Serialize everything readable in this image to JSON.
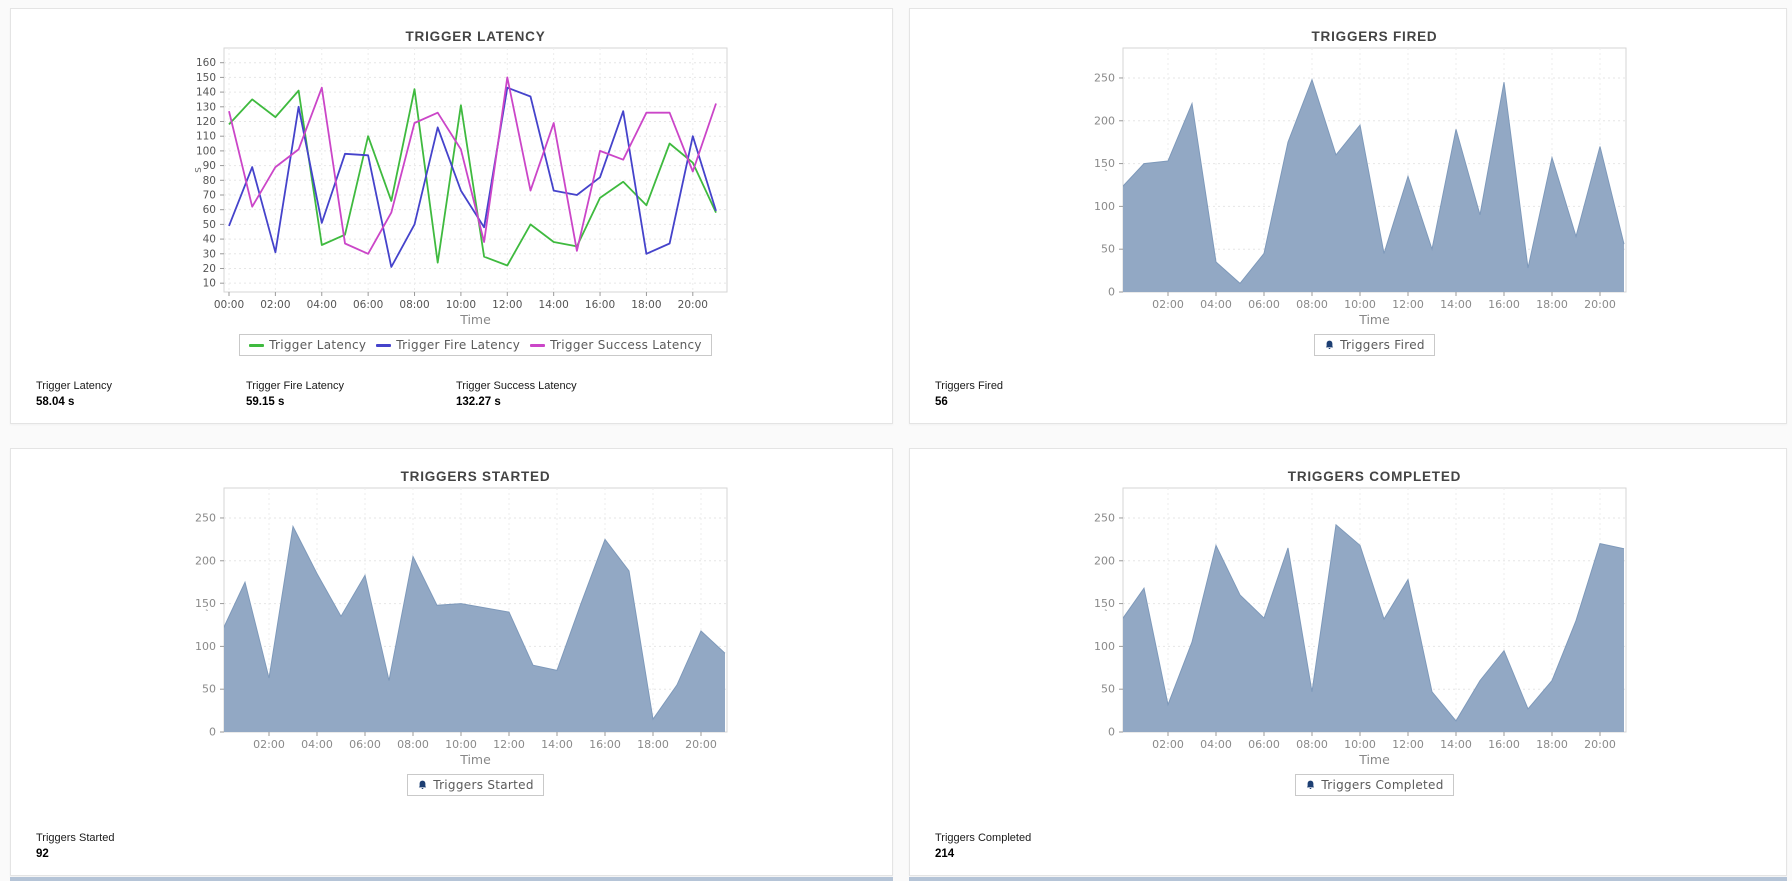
{
  "page": {
    "background": "#fafafa",
    "panel_border": "#e4e4e4",
    "next_row_strip_color": "#b5c4d7"
  },
  "chart_data": [
    {
      "type": "line",
      "title": "TRIGGER LATENCY",
      "xlabel": "Time",
      "ylabel": "s",
      "categories": [
        "00:00",
        "01:00",
        "02:00",
        "03:00",
        "04:00",
        "05:00",
        "06:00",
        "07:00",
        "08:00",
        "09:00",
        "10:00",
        "11:00",
        "12:00",
        "13:00",
        "14:00",
        "15:00",
        "16:00",
        "17:00",
        "18:00",
        "19:00",
        "20:00",
        "21:00"
      ],
      "xtick_labels": [
        "00:00",
        "02:00",
        "04:00",
        "06:00",
        "08:00",
        "10:00",
        "12:00",
        "14:00",
        "16:00",
        "18:00",
        "20:00"
      ],
      "ylim": [
        4,
        170
      ],
      "yticks": [
        10,
        20,
        30,
        40,
        50,
        60,
        70,
        80,
        90,
        100,
        110,
        120,
        130,
        140,
        150,
        160
      ],
      "grid": true,
      "legend_position": "bottom",
      "series": [
        {
          "name": "Trigger Latency",
          "color": "#3fba3f",
          "values": [
            118,
            135,
            123,
            141,
            36,
            43,
            110,
            66,
            142,
            24,
            131,
            28,
            22,
            50,
            38,
            35,
            68,
            79,
            63,
            105,
            92,
            58.04
          ]
        },
        {
          "name": "Trigger Fire Latency",
          "color": "#4543cb",
          "values": [
            49,
            89,
            31,
            130,
            51,
            98,
            97,
            21,
            50,
            116,
            73,
            48,
            143,
            137,
            73,
            70,
            82,
            127,
            30,
            37,
            110,
            59.15
          ]
        },
        {
          "name": "Trigger Success Latency",
          "color": "#cb46c8",
          "values": [
            127,
            62,
            89,
            101,
            143,
            37,
            30,
            58,
            119,
            126,
            101,
            38,
            150,
            73,
            119,
            32,
            100,
            94,
            126,
            126,
            86,
            132.27
          ]
        }
      ],
      "current": [
        {
          "label": "Trigger Latency",
          "value": "58.04 s"
        },
        {
          "label": "Trigger Fire Latency",
          "value": "59.15 s"
        },
        {
          "label": "Trigger Success Latency",
          "value": "132.27 s"
        }
      ]
    },
    {
      "type": "area",
      "title": "TRIGGERS FIRED",
      "xlabel": "Time",
      "ylabel": ",",
      "categories": [
        "00:00",
        "01:00",
        "02:00",
        "03:00",
        "04:00",
        "05:00",
        "06:00",
        "07:00",
        "08:00",
        "09:00",
        "10:00",
        "11:00",
        "12:00",
        "13:00",
        "14:00",
        "15:00",
        "16:00",
        "17:00",
        "18:00",
        "19:00",
        "20:00",
        "21:00"
      ],
      "xtick_labels": [
        "02:00",
        "04:00",
        "06:00",
        "08:00",
        "10:00",
        "12:00",
        "14:00",
        "16:00",
        "18:00",
        "20:00"
      ],
      "ylim": [
        0,
        285
      ],
      "yticks": [
        0,
        50,
        100,
        150,
        200,
        250
      ],
      "grid": true,
      "legend_position": "bottom",
      "legend_icon": "bell-icon",
      "area_fill": "#92a8c4",
      "area_stroke": "#7e99ba",
      "series": [
        {
          "name": "Triggers Fired",
          "color": "#92a8c4",
          "values": [
            120,
            150,
            153,
            220,
            35,
            10,
            45,
            175,
            248,
            160,
            195,
            45,
            135,
            50,
            190,
            90,
            245,
            28,
            157,
            65,
            170,
            56
          ]
        }
      ],
      "current": [
        {
          "label": "Triggers Fired",
          "value": "56"
        }
      ]
    },
    {
      "type": "area",
      "title": "TRIGGERS STARTED",
      "xlabel": "Time",
      "ylabel": ",",
      "categories": [
        "00:00",
        "01:00",
        "02:00",
        "03:00",
        "04:00",
        "05:00",
        "06:00",
        "07:00",
        "08:00",
        "09:00",
        "10:00",
        "11:00",
        "12:00",
        "13:00",
        "14:00",
        "15:00",
        "16:00",
        "17:00",
        "18:00",
        "19:00",
        "20:00",
        "21:00"
      ],
      "xtick_labels": [
        "02:00",
        "04:00",
        "06:00",
        "08:00",
        "10:00",
        "12:00",
        "14:00",
        "16:00",
        "18:00",
        "20:00"
      ],
      "ylim": [
        0,
        285
      ],
      "yticks": [
        0,
        50,
        100,
        150,
        200,
        250
      ],
      "grid": true,
      "legend_position": "bottom",
      "legend_icon": "bell-icon",
      "area_fill": "#92a8c4",
      "area_stroke": "#7e99ba",
      "series": [
        {
          "name": "Triggers Started",
          "color": "#92a8c4",
          "values": [
            115,
            175,
            63,
            240,
            185,
            135,
            183,
            60,
            205,
            148,
            150,
            145,
            140,
            78,
            72,
            150,
            225,
            188,
            15,
            55,
            118,
            92
          ]
        }
      ],
      "current": [
        {
          "label": "Triggers Started",
          "value": "92"
        }
      ]
    },
    {
      "type": "area",
      "title": "TRIGGERS COMPLETED",
      "xlabel": "Time",
      "ylabel": ",",
      "categories": [
        "00:00",
        "01:00",
        "02:00",
        "03:00",
        "04:00",
        "05:00",
        "06:00",
        "07:00",
        "08:00",
        "09:00",
        "10:00",
        "11:00",
        "12:00",
        "13:00",
        "14:00",
        "15:00",
        "16:00",
        "17:00",
        "18:00",
        "19:00",
        "20:00",
        "21:00"
      ],
      "xtick_labels": [
        "02:00",
        "04:00",
        "06:00",
        "08:00",
        "10:00",
        "12:00",
        "14:00",
        "16:00",
        "18:00",
        "20:00"
      ],
      "ylim": [
        0,
        285
      ],
      "yticks": [
        0,
        50,
        100,
        150,
        200,
        250
      ],
      "grid": true,
      "legend_position": "bottom",
      "legend_icon": "bell-icon",
      "area_fill": "#92a8c4",
      "area_stroke": "#7e99ba",
      "series": [
        {
          "name": "Triggers Completed",
          "color": "#92a8c4",
          "values": [
            128,
            168,
            32,
            105,
            218,
            160,
            133,
            215,
            47,
            242,
            218,
            132,
            178,
            47,
            13,
            60,
            95,
            27,
            60,
            130,
            220,
            214
          ]
        }
      ],
      "current": [
        {
          "label": "Triggers Completed",
          "value": "214"
        }
      ]
    }
  ]
}
